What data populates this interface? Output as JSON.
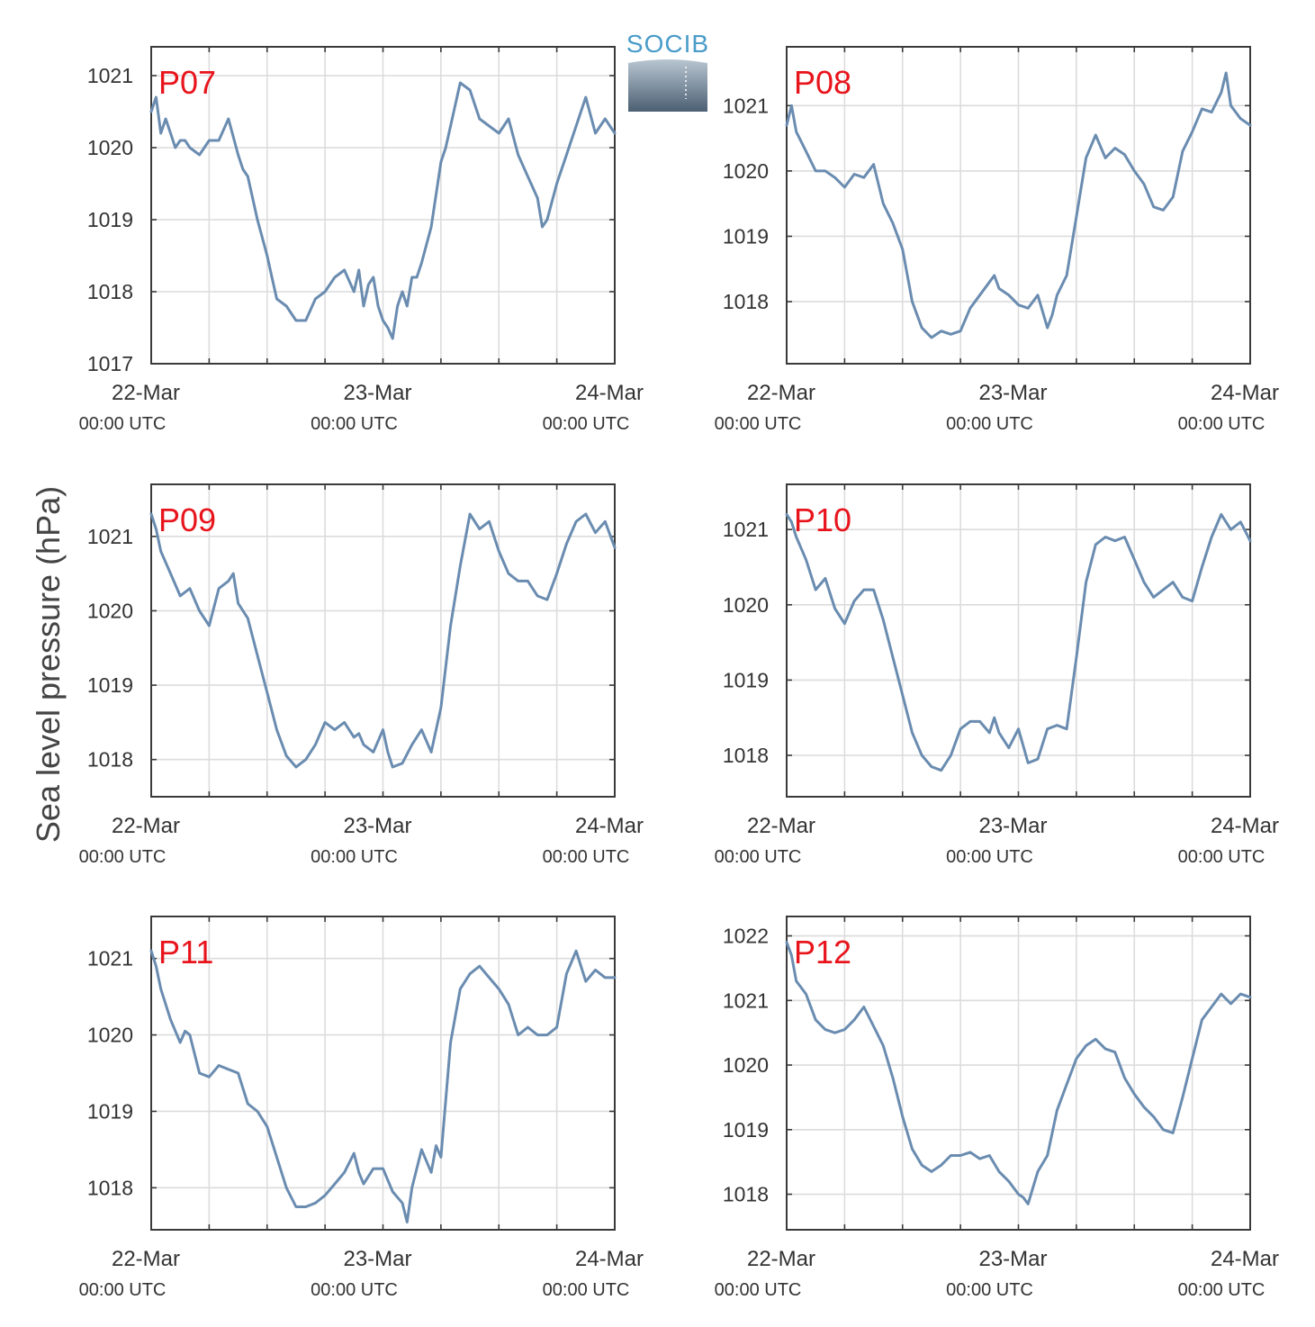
{
  "figure": {
    "ylabel": "Sea level pressure (hPa)",
    "logo_text": "SOCIB",
    "time_labels": [
      "00:00 UTC",
      "00:00 UTC",
      "00:00 UTC"
    ]
  },
  "chart_data": [
    {
      "type": "line",
      "station": "P07",
      "xlabel": "",
      "ylabel": "Sea level pressure (hPa)",
      "x_unit": "hours since 22-Mar 00:00 UTC",
      "xlim": [
        0,
        48
      ],
      "x_ticks": [
        "22-Mar",
        "23-Mar",
        "24-Mar"
      ],
      "ylim": [
        1017,
        1021.4
      ],
      "y_ticks": [
        1017,
        1018,
        1019,
        1020,
        1021
      ],
      "grid": true,
      "series": [
        {
          "x": [
            0,
            0.5,
            1,
            1.5,
            2,
            2.5,
            3,
            3.5,
            4,
            5,
            6,
            7,
            8,
            9,
            9.5,
            10,
            11,
            12,
            12.5,
            13,
            14,
            15,
            16,
            17,
            18,
            19,
            20,
            21,
            21.5,
            22,
            22.5,
            23,
            23.5,
            24,
            24.5,
            25,
            25.5,
            26,
            26.5,
            27,
            27.5,
            28,
            29,
            30,
            30.5,
            31,
            32,
            33,
            34,
            35,
            36,
            37,
            38,
            39,
            40,
            40.5,
            41,
            42,
            43,
            44,
            45,
            46,
            47,
            48
          ],
          "values": [
            1020.5,
            1020.7,
            1020.2,
            1020.4,
            1020.2,
            1020.0,
            1020.1,
            1020.1,
            1020.0,
            1019.9,
            1020.1,
            1020.1,
            1020.4,
            1019.9,
            1019.7,
            1019.6,
            1019.0,
            1018.5,
            1018.2,
            1017.9,
            1017.8,
            1017.6,
            1017.6,
            1017.9,
            1018.0,
            1018.2,
            1018.3,
            1018.0,
            1018.3,
            1017.8,
            1018.1,
            1018.2,
            1017.8,
            1017.6,
            1017.5,
            1017.35,
            1017.8,
            1018.0,
            1017.8,
            1018.2,
            1018.2,
            1018.4,
            1018.9,
            1019.8,
            1020.0,
            1020.3,
            1020.9,
            1020.8,
            1020.4,
            1020.3,
            1020.2,
            1020.4,
            1019.9,
            1019.6,
            1019.3,
            1018.9,
            1019.0,
            1019.5,
            1019.9,
            1020.3,
            1020.7,
            1020.2,
            1020.4,
            1020.2
          ]
        }
      ]
    },
    {
      "type": "line",
      "station": "P08",
      "xlabel": "",
      "ylabel": "Sea level pressure (hPa)",
      "x_unit": "hours since 22-Mar 00:00 UTC",
      "xlim": [
        0,
        48
      ],
      "x_ticks": [
        "22-Mar",
        "23-Mar",
        "24-Mar"
      ],
      "ylim": [
        1017.05,
        1021.9
      ],
      "y_ticks": [
        1018,
        1019,
        1020,
        1021
      ],
      "grid": true,
      "series": [
        {
          "x": [
            0,
            0.5,
            1,
            2,
            3,
            4,
            5,
            6,
            7,
            8,
            9,
            10,
            11,
            12,
            13,
            14,
            15,
            16,
            17,
            18,
            19,
            20,
            21,
            21.5,
            22,
            23,
            24,
            25,
            26,
            27,
            27.5,
            28,
            29,
            30,
            31,
            32,
            33,
            34,
            35,
            36,
            37,
            38,
            39,
            40,
            41,
            42,
            43,
            44,
            45,
            45.5,
            46,
            47,
            48
          ],
          "values": [
            1020.7,
            1021.0,
            1020.6,
            1020.3,
            1020.0,
            1020.0,
            1019.9,
            1019.75,
            1019.95,
            1019.9,
            1020.1,
            1019.5,
            1019.2,
            1018.8,
            1018.0,
            1017.6,
            1017.45,
            1017.55,
            1017.5,
            1017.55,
            1017.9,
            1018.1,
            1018.3,
            1018.4,
            1018.2,
            1018.1,
            1017.95,
            1017.9,
            1018.1,
            1017.6,
            1017.8,
            1018.1,
            1018.4,
            1019.3,
            1020.2,
            1020.55,
            1020.2,
            1020.35,
            1020.25,
            1020.0,
            1019.8,
            1019.45,
            1019.4,
            1019.6,
            1020.3,
            1020.6,
            1020.95,
            1020.9,
            1021.2,
            1021.5,
            1021.0,
            1020.8,
            1020.7
          ]
        }
      ]
    },
    {
      "type": "line",
      "station": "P09",
      "xlabel": "",
      "ylabel": "Sea level pressure (hPa)",
      "x_unit": "hours since 22-Mar 00:00 UTC",
      "xlim": [
        0,
        48
      ],
      "x_ticks": [
        "22-Mar",
        "23-Mar",
        "24-Mar"
      ],
      "ylim": [
        1017.5,
        1021.7
      ],
      "y_ticks": [
        1018,
        1019,
        1020,
        1021
      ],
      "grid": true,
      "series": [
        {
          "x": [
            0,
            0.5,
            1,
            2,
            3,
            4,
            5,
            6,
            7,
            8,
            8.5,
            9,
            10,
            11,
            12,
            13,
            14,
            15,
            16,
            17,
            18,
            19,
            20,
            21,
            21.5,
            22,
            23,
            24,
            24.5,
            25,
            26,
            27,
            28,
            29,
            30,
            31,
            32,
            33,
            34,
            35,
            36,
            37,
            38,
            39,
            40,
            41,
            42,
            43,
            44,
            45,
            46,
            47,
            48
          ],
          "values": [
            1021.3,
            1021.1,
            1020.8,
            1020.5,
            1020.2,
            1020.3,
            1020.0,
            1019.8,
            1020.3,
            1020.4,
            1020.5,
            1020.1,
            1019.9,
            1019.4,
            1018.9,
            1018.4,
            1018.05,
            1017.9,
            1018.0,
            1018.2,
            1018.5,
            1018.4,
            1018.5,
            1018.3,
            1018.35,
            1018.2,
            1018.1,
            1018.4,
            1018.1,
            1017.9,
            1017.95,
            1018.2,
            1018.4,
            1018.1,
            1018.7,
            1019.8,
            1020.6,
            1021.3,
            1021.1,
            1021.2,
            1020.8,
            1020.5,
            1020.4,
            1020.4,
            1020.2,
            1020.15,
            1020.5,
            1020.9,
            1021.2,
            1021.3,
            1021.05,
            1021.2,
            1020.85
          ]
        }
      ]
    },
    {
      "type": "line",
      "station": "P10",
      "xlabel": "",
      "ylabel": "Sea level pressure (hPa)",
      "x_unit": "hours since 22-Mar 00:00 UTC",
      "xlim": [
        0,
        48
      ],
      "x_ticks": [
        "22-Mar",
        "23-Mar",
        "24-Mar"
      ],
      "ylim": [
        1017.45,
        1021.6
      ],
      "y_ticks": [
        1018,
        1019,
        1020,
        1021
      ],
      "grid": true,
      "series": [
        {
          "x": [
            0,
            0.5,
            1,
            2,
            3,
            4,
            5,
            6,
            7,
            8,
            9,
            10,
            11,
            12,
            13,
            14,
            15,
            16,
            17,
            18,
            19,
            20,
            21,
            21.5,
            22,
            23,
            24,
            25,
            26,
            27,
            28,
            29,
            30,
            31,
            32,
            33,
            34,
            35,
            36,
            37,
            38,
            39,
            40,
            41,
            42,
            43,
            44,
            45,
            46,
            47,
            48
          ],
          "values": [
            1021.2,
            1021.1,
            1020.9,
            1020.6,
            1020.2,
            1020.35,
            1019.95,
            1019.75,
            1020.05,
            1020.2,
            1020.2,
            1019.8,
            1019.3,
            1018.8,
            1018.3,
            1018.0,
            1017.85,
            1017.8,
            1018.0,
            1018.35,
            1018.45,
            1018.45,
            1018.3,
            1018.5,
            1018.3,
            1018.1,
            1018.35,
            1017.9,
            1017.95,
            1018.35,
            1018.4,
            1018.35,
            1019.3,
            1020.3,
            1020.8,
            1020.9,
            1020.85,
            1020.9,
            1020.6,
            1020.3,
            1020.1,
            1020.2,
            1020.3,
            1020.1,
            1020.05,
            1020.5,
            1020.9,
            1021.2,
            1021.0,
            1021.1,
            1020.85
          ]
        }
      ]
    },
    {
      "type": "line",
      "station": "P11",
      "xlabel": "",
      "ylabel": "Sea level pressure (hPa)",
      "x_unit": "hours since 22-Mar 00:00 UTC",
      "xlim": [
        0,
        48
      ],
      "x_ticks": [
        "22-Mar",
        "23-Mar",
        "24-Mar"
      ],
      "ylim": [
        1017.45,
        1021.55
      ],
      "y_ticks": [
        1018,
        1019,
        1020,
        1021
      ],
      "grid": true,
      "series": [
        {
          "x": [
            0,
            0.5,
            1,
            2,
            3,
            3.5,
            4,
            5,
            6,
            7,
            8,
            9,
            10,
            11,
            12,
            13,
            14,
            15,
            16,
            17,
            18,
            19,
            20,
            21,
            21.5,
            22,
            23,
            24,
            25,
            26,
            26.5,
            27,
            28,
            29,
            29.5,
            30,
            31,
            32,
            33,
            34,
            35,
            36,
            37,
            38,
            39,
            40,
            41,
            42,
            43,
            44,
            45,
            46,
            47,
            48
          ],
          "values": [
            1021.1,
            1020.9,
            1020.6,
            1020.2,
            1019.9,
            1020.05,
            1020.0,
            1019.5,
            1019.45,
            1019.6,
            1019.55,
            1019.5,
            1019.1,
            1019.0,
            1018.8,
            1018.4,
            1018.0,
            1017.75,
            1017.75,
            1017.8,
            1017.9,
            1018.05,
            1018.2,
            1018.45,
            1018.2,
            1018.05,
            1018.25,
            1018.25,
            1017.95,
            1017.8,
            1017.55,
            1018.0,
            1018.5,
            1018.2,
            1018.55,
            1018.4,
            1019.9,
            1020.6,
            1020.8,
            1020.9,
            1020.75,
            1020.6,
            1020.4,
            1020.0,
            1020.1,
            1020.0,
            1020.0,
            1020.1,
            1020.8,
            1021.1,
            1020.7,
            1020.85,
            1020.75,
            1020.75
          ]
        }
      ]
    },
    {
      "type": "line",
      "station": "P12",
      "xlabel": "",
      "ylabel": "Sea level pressure (hPa)",
      "x_unit": "hours since 22-Mar 00:00 UTC",
      "xlim": [
        0,
        48
      ],
      "x_ticks": [
        "22-Mar",
        "23-Mar",
        "24-Mar"
      ],
      "ylim": [
        1017.45,
        1022.3
      ],
      "y_ticks": [
        1018,
        1019,
        1020,
        1021,
        1022
      ],
      "grid": true,
      "series": [
        {
          "x": [
            0,
            0.5,
            1,
            2,
            3,
            4,
            5,
            6,
            7,
            8,
            9,
            10,
            11,
            12,
            13,
            14,
            15,
            16,
            17,
            18,
            19,
            20,
            21,
            22,
            23,
            24,
            24.5,
            25,
            26,
            27,
            28,
            29,
            30,
            31,
            32,
            33,
            34,
            35,
            36,
            37,
            38,
            39,
            40,
            41,
            42,
            43,
            44,
            45,
            46,
            47,
            48
          ],
          "values": [
            1021.9,
            1021.7,
            1021.3,
            1021.1,
            1020.7,
            1020.55,
            1020.5,
            1020.55,
            1020.7,
            1020.9,
            1020.6,
            1020.3,
            1019.8,
            1019.2,
            1018.7,
            1018.45,
            1018.35,
            1018.45,
            1018.6,
            1018.6,
            1018.65,
            1018.55,
            1018.6,
            1018.35,
            1018.2,
            1018.0,
            1017.95,
            1017.85,
            1018.35,
            1018.6,
            1019.3,
            1019.7,
            1020.1,
            1020.3,
            1020.4,
            1020.25,
            1020.2,
            1019.8,
            1019.55,
            1019.35,
            1019.2,
            1019.0,
            1018.95,
            1019.5,
            1020.1,
            1020.7,
            1020.9,
            1021.1,
            1020.95,
            1021.1,
            1021.05
          ]
        }
      ]
    }
  ]
}
